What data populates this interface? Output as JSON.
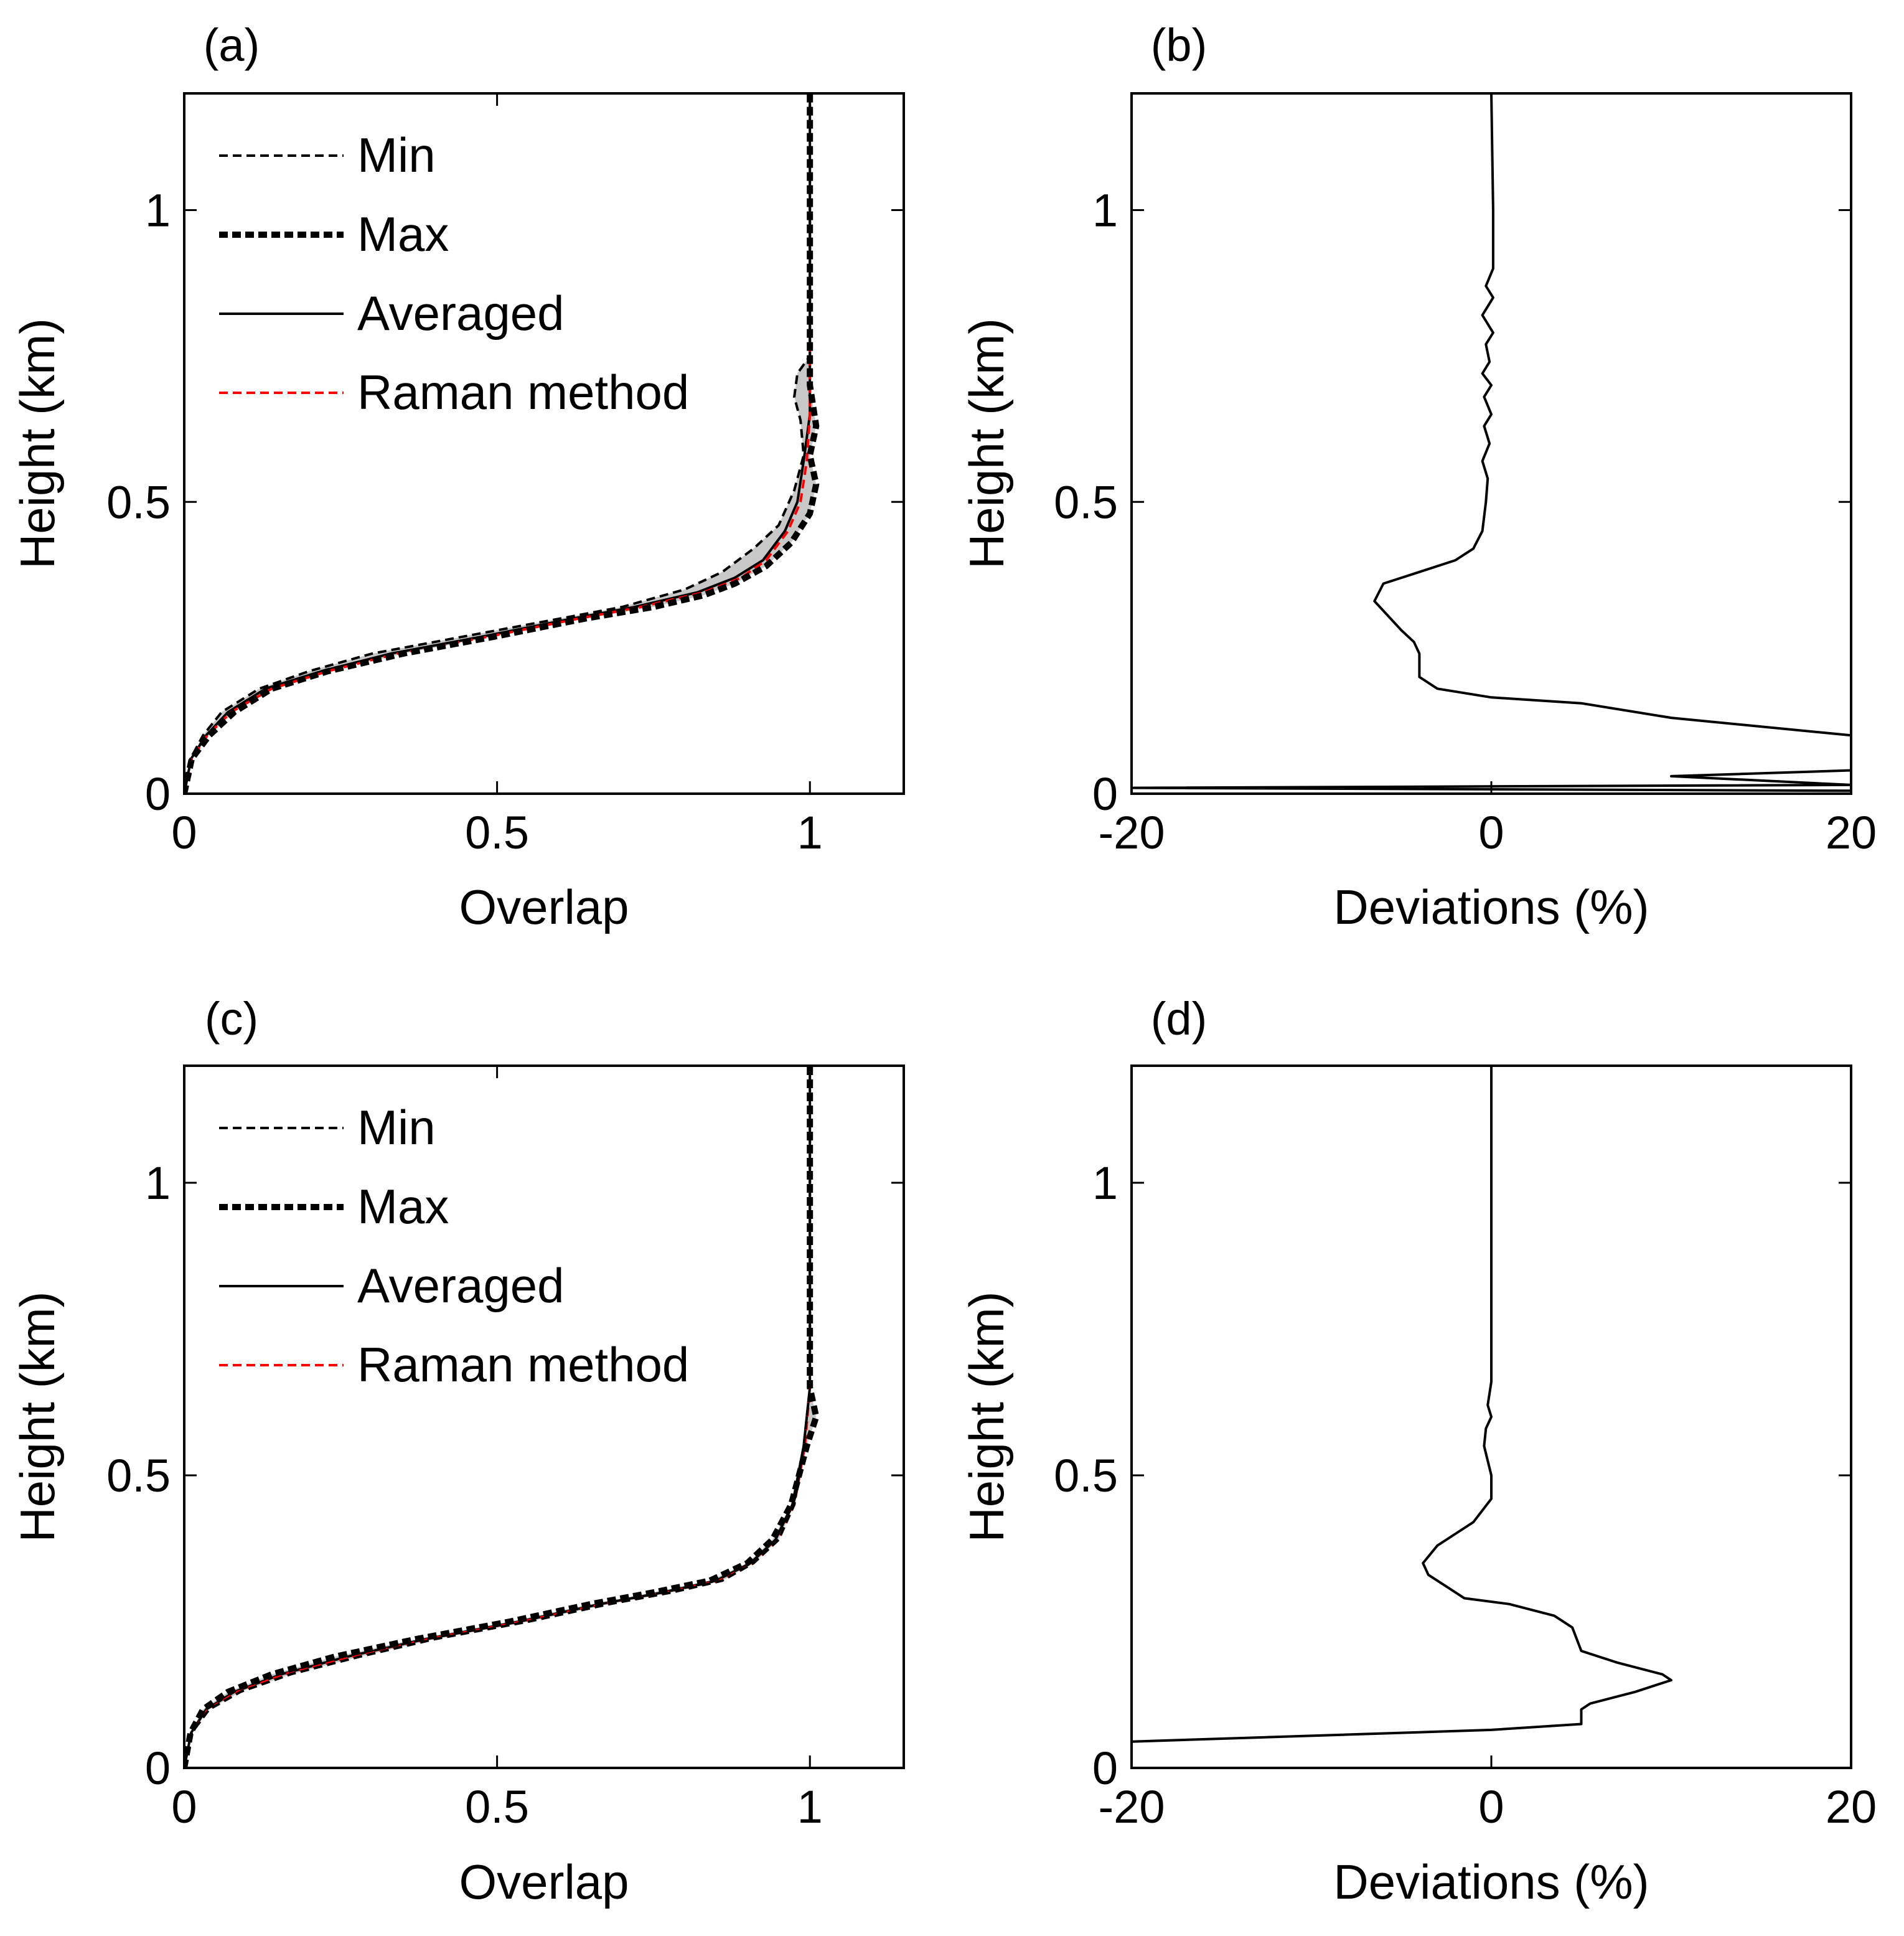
{
  "colors": {
    "black": "#000000",
    "raman": "#ff0000",
    "band_fill": "#c8c8c8",
    "background": "#ffffff"
  },
  "panels": {
    "a": {
      "label": "(a)"
    },
    "b": {
      "label": "(b)"
    },
    "c": {
      "label": "(c)"
    },
    "d": {
      "label": "(d)"
    }
  },
  "chart_data": [
    {
      "id": "a",
      "type": "line",
      "panel_label": "(a)",
      "xlabel": "Overlap",
      "ylabel": "Height (km)",
      "xlim": [
        0,
        1.15
      ],
      "ylim": [
        0,
        1.2
      ],
      "xticks": [
        0,
        0.5,
        1
      ],
      "xtick_labels": [
        "0",
        "0.5",
        "1"
      ],
      "yticks": [
        0,
        0.5,
        1
      ],
      "ytick_labels": [
        "0",
        "0.5",
        "1"
      ],
      "legend": {
        "position": "top-left",
        "entries": [
          "Min",
          "Max",
          "Averaged",
          "Raman method"
        ]
      },
      "shaded_band": "between Min and Max",
      "series": [
        {
          "name": "Min",
          "style": "thin-dashed-black",
          "x": [
            0,
            0.01,
            0.03,
            0.06,
            0.12,
            0.2,
            0.3,
            0.45,
            0.6,
            0.7,
            0.8,
            0.86,
            0.91,
            0.95,
            0.975,
            0.99,
            0.985,
            0.975,
            0.98,
            1.0,
            1.0,
            1.0
          ],
          "y": [
            0,
            0.06,
            0.1,
            0.14,
            0.18,
            0.21,
            0.24,
            0.27,
            0.3,
            0.32,
            0.35,
            0.38,
            0.42,
            0.46,
            0.52,
            0.58,
            0.64,
            0.68,
            0.72,
            0.75,
            0.9,
            1.2
          ]
        },
        {
          "name": "Max",
          "style": "thick-dashed-black",
          "x": [
            0,
            0.012,
            0.04,
            0.08,
            0.14,
            0.23,
            0.35,
            0.5,
            0.64,
            0.75,
            0.83,
            0.88,
            0.93,
            0.97,
            1.0,
            1.01,
            1.0,
            1.01,
            1.0,
            1.0,
            1.0
          ],
          "y": [
            0,
            0.06,
            0.1,
            0.14,
            0.18,
            0.21,
            0.24,
            0.27,
            0.3,
            0.32,
            0.34,
            0.36,
            0.39,
            0.43,
            0.48,
            0.53,
            0.58,
            0.63,
            0.7,
            0.9,
            1.2
          ]
        },
        {
          "name": "Averaged",
          "style": "solid-black",
          "x": [
            0,
            0.011,
            0.035,
            0.07,
            0.13,
            0.22,
            0.33,
            0.48,
            0.62,
            0.72,
            0.82,
            0.88,
            0.925,
            0.96,
            0.98,
            0.99,
            1.0,
            1.0,
            1.0
          ],
          "y": [
            0,
            0.06,
            0.1,
            0.14,
            0.18,
            0.21,
            0.24,
            0.27,
            0.3,
            0.32,
            0.345,
            0.37,
            0.4,
            0.45,
            0.5,
            0.57,
            0.65,
            0.9,
            1.2
          ]
        },
        {
          "name": "Raman method",
          "style": "thin-dashed-red",
          "x": [
            0,
            0.012,
            0.037,
            0.075,
            0.14,
            0.23,
            0.34,
            0.49,
            0.63,
            0.73,
            0.83,
            0.89,
            0.93,
            0.965,
            0.985,
            0.995,
            1.0,
            1.0,
            1.0
          ],
          "y": [
            0,
            0.06,
            0.1,
            0.14,
            0.18,
            0.21,
            0.24,
            0.27,
            0.3,
            0.32,
            0.345,
            0.37,
            0.4,
            0.45,
            0.5,
            0.57,
            0.65,
            0.75,
            0.78
          ]
        }
      ]
    },
    {
      "id": "b",
      "type": "line",
      "panel_label": "(b)",
      "xlabel": "Deviations (%)",
      "ylabel": "Height (km)",
      "xlim": [
        -20,
        20
      ],
      "ylim": [
        0,
        1.2
      ],
      "xticks": [
        -20,
        0,
        20
      ],
      "xtick_labels": [
        "-20",
        "0",
        "20"
      ],
      "yticks": [
        0,
        0.5,
        1
      ],
      "ytick_labels": [
        "0",
        "0.5",
        "1"
      ],
      "series": [
        {
          "name": "Deviation",
          "style": "solid-black",
          "x": [
            20,
            20,
            -20,
            20,
            10,
            20,
            20,
            10,
            5,
            0,
            -3,
            -4,
            -4,
            -4.3,
            -5,
            -6.5,
            -6,
            -4,
            -2,
            -1,
            -0.5,
            -0.3,
            -0.2,
            -0.5,
            -0.1,
            -0.4,
            0,
            -0.4,
            0,
            -0.5,
            -0.1,
            -0.3,
            0.1,
            -0.5,
            0.1,
            -0.3,
            0.1,
            0.1,
            0.1,
            0.1,
            0
          ],
          "y": [
            0,
            0.005,
            0.01,
            0.015,
            0.03,
            0.04,
            0.1,
            0.13,
            0.155,
            0.165,
            0.18,
            0.2,
            0.24,
            0.26,
            0.28,
            0.33,
            0.36,
            0.38,
            0.4,
            0.42,
            0.45,
            0.5,
            0.54,
            0.57,
            0.6,
            0.63,
            0.65,
            0.68,
            0.7,
            0.72,
            0.74,
            0.77,
            0.79,
            0.82,
            0.85,
            0.87,
            0.9,
            0.92,
            0.95,
            1.0,
            1.2
          ]
        }
      ]
    },
    {
      "id": "c",
      "type": "line",
      "panel_label": "(c)",
      "xlabel": "Overlap",
      "ylabel": "Height (km)",
      "xlim": [
        0,
        1.15
      ],
      "ylim": [
        0,
        1.2
      ],
      "xticks": [
        0,
        0.5,
        1
      ],
      "xtick_labels": [
        "0",
        "0.5",
        "1"
      ],
      "yticks": [
        0,
        0.5,
        1
      ],
      "ytick_labels": [
        "0",
        "0.5",
        "1"
      ],
      "legend": {
        "position": "top-left",
        "entries": [
          "Min",
          "Max",
          "Averaged",
          "Raman method"
        ]
      },
      "shaded_band": "between Min and Max",
      "series": [
        {
          "name": "Min",
          "style": "thin-dashed-black",
          "x": [
            0,
            0.012,
            0.04,
            0.09,
            0.17,
            0.28,
            0.4,
            0.55,
            0.68,
            0.78,
            0.86,
            0.91,
            0.95,
            0.975,
            0.99,
            1.0,
            1.0
          ],
          "y": [
            0,
            0.06,
            0.1,
            0.13,
            0.16,
            0.19,
            0.22,
            0.25,
            0.28,
            0.3,
            0.32,
            0.35,
            0.39,
            0.45,
            0.55,
            0.65,
            1.2
          ]
        },
        {
          "name": "Max",
          "style": "thick-dashed-black",
          "x": [
            0,
            0.01,
            0.03,
            0.07,
            0.14,
            0.24,
            0.37,
            0.52,
            0.65,
            0.75,
            0.84,
            0.9,
            0.94,
            0.97,
            0.995,
            1.01,
            1.0,
            1.0
          ],
          "y": [
            0,
            0.06,
            0.1,
            0.13,
            0.16,
            0.19,
            0.22,
            0.25,
            0.28,
            0.3,
            0.32,
            0.35,
            0.39,
            0.45,
            0.55,
            0.6,
            0.65,
            1.2
          ]
        },
        {
          "name": "Averaged",
          "style": "solid-black",
          "x": [
            0,
            0.011,
            0.035,
            0.08,
            0.155,
            0.26,
            0.385,
            0.535,
            0.665,
            0.765,
            0.85,
            0.905,
            0.945,
            0.972,
            0.99,
            1.0,
            1.0
          ],
          "y": [
            0,
            0.06,
            0.1,
            0.13,
            0.16,
            0.19,
            0.22,
            0.25,
            0.28,
            0.3,
            0.32,
            0.35,
            0.39,
            0.45,
            0.55,
            0.65,
            1.2
          ]
        },
        {
          "name": "Raman method",
          "style": "thin-dashed-red",
          "x": [
            0,
            0.012,
            0.038,
            0.085,
            0.16,
            0.27,
            0.39,
            0.54,
            0.67,
            0.77,
            0.855,
            0.91,
            0.95,
            0.975,
            0.992,
            1.0,
            1.0
          ],
          "y": [
            0,
            0.06,
            0.1,
            0.13,
            0.16,
            0.19,
            0.22,
            0.25,
            0.28,
            0.3,
            0.32,
            0.35,
            0.39,
            0.45,
            0.55,
            0.65,
            0.68
          ]
        }
      ]
    },
    {
      "id": "d",
      "type": "line",
      "panel_label": "(d)",
      "xlabel": "Deviations (%)",
      "ylabel": "Height (km)",
      "xlim": [
        -20,
        20
      ],
      "ylim": [
        0,
        1.2
      ],
      "xticks": [
        -20,
        0,
        20
      ],
      "xtick_labels": [
        "-20",
        "0",
        "20"
      ],
      "yticks": [
        0,
        0.5,
        1
      ],
      "ytick_labels": [
        "0",
        "0.5",
        "1"
      ],
      "series": [
        {
          "name": "Deviation",
          "style": "solid-black",
          "x": [
            -20,
            0,
            5,
            5,
            5.5,
            8,
            10,
            9.5,
            7,
            5,
            4.5,
            3.5,
            1,
            -1.5,
            -2.5,
            -3.5,
            -3.8,
            -3,
            -2,
            -1,
            -0.5,
            0,
            0,
            -0.4,
            -0.3,
            0,
            -0.2,
            0,
            0,
            0
          ],
          "y": [
            0.045,
            0.065,
            0.075,
            0.1,
            0.11,
            0.13,
            0.15,
            0.16,
            0.18,
            0.2,
            0.24,
            0.26,
            0.28,
            0.29,
            0.31,
            0.33,
            0.35,
            0.38,
            0.4,
            0.42,
            0.44,
            0.46,
            0.5,
            0.55,
            0.58,
            0.6,
            0.62,
            0.66,
            0.8,
            1.2
          ]
        }
      ]
    }
  ]
}
